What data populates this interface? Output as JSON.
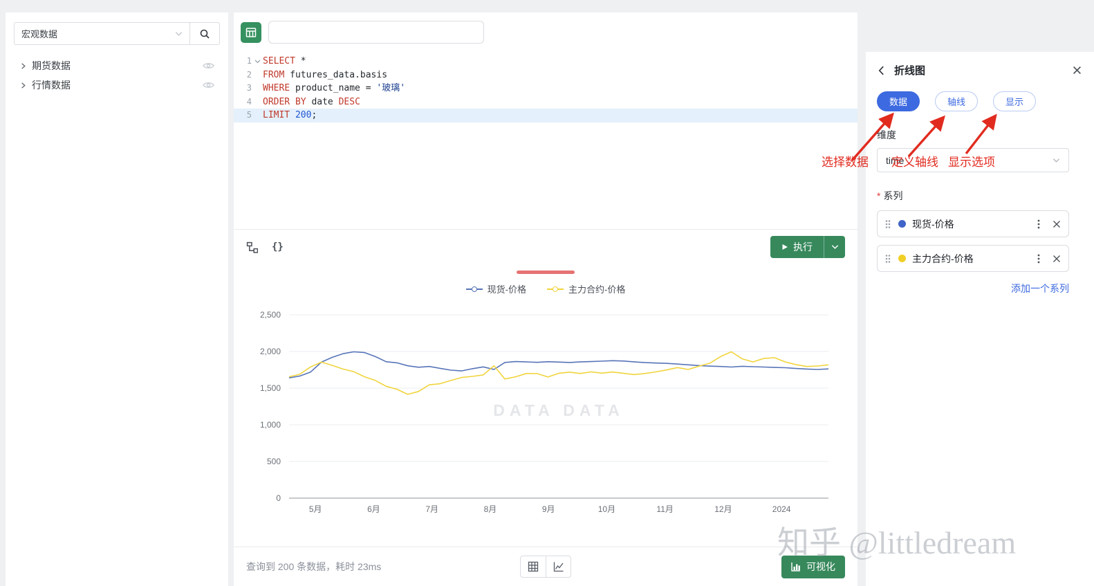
{
  "sidebar": {
    "database_select": {
      "value": "宏观数据"
    },
    "tree": [
      {
        "label": "期货数据"
      },
      {
        "label": "行情数据"
      }
    ]
  },
  "query_bar": {
    "input_value": "",
    "input_placeholder": ""
  },
  "sql_editor": {
    "active_line": 5,
    "lines": [
      {
        "num": 1,
        "tokens": [
          {
            "text": "SELECT",
            "type": "kw"
          },
          {
            "text": " *",
            "type": "plain"
          }
        ]
      },
      {
        "num": 2,
        "tokens": [
          {
            "text": "FROM",
            "type": "kw"
          },
          {
            "text": " futures_data.basis",
            "type": "plain"
          }
        ]
      },
      {
        "num": 3,
        "tokens": [
          {
            "text": "WHERE",
            "type": "kw"
          },
          {
            "text": " product_name = ",
            "type": "plain"
          },
          {
            "text": "'玻璃'",
            "type": "string"
          }
        ]
      },
      {
        "num": 4,
        "tokens": [
          {
            "text": "ORDER BY",
            "type": "kw"
          },
          {
            "text": " date ",
            "type": "plain"
          },
          {
            "text": "DESC",
            "type": "kw"
          }
        ]
      },
      {
        "num": 5,
        "tokens": [
          {
            "text": "LIMIT",
            "type": "kw"
          },
          {
            "text": " ",
            "type": "plain"
          },
          {
            "text": "200",
            "type": "num"
          },
          {
            "text": ";",
            "type": "plain"
          }
        ]
      }
    ]
  },
  "results_toolbar": {
    "run_label": "执行"
  },
  "status_bar": {
    "summary": "查询到 200 条数据，耗时 23ms",
    "visualize_label": "可视化"
  },
  "chart_data": {
    "type": "line",
    "title": "",
    "xlabel": "",
    "ylabel": "",
    "ylim": [
      0,
      2500
    ],
    "y_ticks": [
      0,
      500,
      1000,
      1500,
      2000,
      2500
    ],
    "x_tick_labels": [
      "5月",
      "6月",
      "7月",
      "8月",
      "9月",
      "10月",
      "11月",
      "12月",
      "2024"
    ],
    "x_tick_pos": [
      4.9,
      15.7,
      26.5,
      37.3,
      48.1,
      58.9,
      69.7,
      80.5,
      91.3
    ],
    "grid": true,
    "legend_position": "top",
    "watermark": "DATA DATA",
    "x": [
      0,
      2,
      4,
      6,
      8,
      10,
      12,
      14,
      16,
      18,
      20,
      22,
      24,
      26,
      28,
      30,
      32,
      34,
      36,
      38,
      40,
      42,
      44,
      46,
      48,
      50,
      52,
      54,
      56,
      58,
      60,
      62,
      64,
      66,
      68,
      70,
      72,
      74,
      76,
      78,
      80,
      82,
      84,
      86,
      88,
      90,
      92,
      94,
      96,
      98,
      100
    ],
    "series": [
      {
        "name": "现货-价格",
        "color": "#5774b8",
        "values": [
          1640,
          1665,
          1720,
          1855,
          1920,
          1970,
          1995,
          1985,
          1930,
          1860,
          1845,
          1805,
          1785,
          1795,
          1770,
          1745,
          1735,
          1765,
          1790,
          1755,
          1850,
          1862,
          1858,
          1852,
          1860,
          1856,
          1850,
          1858,
          1862,
          1868,
          1875,
          1870,
          1858,
          1848,
          1842,
          1838,
          1828,
          1818,
          1808,
          1800,
          1795,
          1788,
          1798,
          1792,
          1788,
          1782,
          1778,
          1768,
          1760,
          1755,
          1762
        ]
      },
      {
        "name": "主力合约-价格",
        "color": "#f0d43c",
        "values": [
          1655,
          1690,
          1790,
          1855,
          1810,
          1760,
          1725,
          1655,
          1605,
          1525,
          1485,
          1415,
          1455,
          1545,
          1560,
          1605,
          1645,
          1660,
          1680,
          1805,
          1625,
          1655,
          1700,
          1698,
          1652,
          1702,
          1718,
          1700,
          1722,
          1705,
          1720,
          1702,
          1685,
          1700,
          1722,
          1748,
          1780,
          1755,
          1800,
          1840,
          1930,
          1995,
          1900,
          1858,
          1905,
          1915,
          1858,
          1820,
          1795,
          1802,
          1818
        ]
      }
    ]
  },
  "panel": {
    "title": "折线图",
    "tabs": [
      {
        "label": "数据",
        "active": true
      },
      {
        "label": "轴线",
        "active": false
      },
      {
        "label": "显示",
        "active": false
      }
    ],
    "dimension_label": "维度",
    "dimension_value": "time",
    "series_label": "系列",
    "series": [
      {
        "label": "现货-价格",
        "color": "#3f63c8"
      },
      {
        "label": "主力合约-价格",
        "color": "#f0cf26"
      }
    ],
    "add_series_label": "添加一个系列"
  },
  "annotations": {
    "labels": [
      "选择数据",
      "定义轴线",
      "显示选项"
    ],
    "color": "#e12b1f"
  },
  "theme": {
    "primary_green": "#37895c",
    "primary_blue": "#3d6ae0",
    "annotation_red": "#e12b1f"
  },
  "watermark_page": "知乎 @littledream"
}
